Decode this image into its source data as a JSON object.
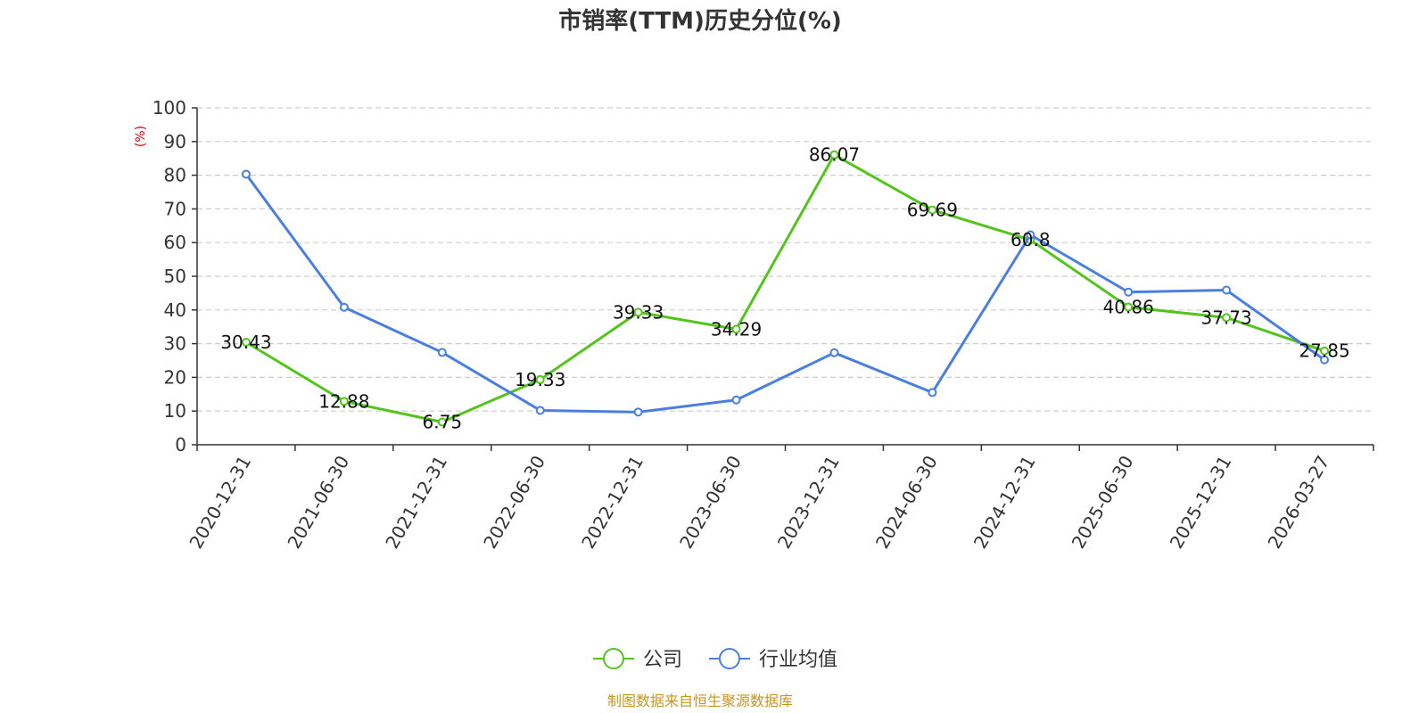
{
  "chart_data": {
    "type": "line",
    "title": "市销率(TTM)历史分位(%)",
    "ylabel": "(%)",
    "xlabel": "",
    "ylim": [
      0,
      100
    ],
    "yticks": [
      "0",
      "10",
      "20",
      "30",
      "40",
      "50",
      "60",
      "70",
      "80",
      "90",
      "100"
    ],
    "categories": [
      "2020-12-31",
      "2021-06-30",
      "2021-12-31",
      "2022-06-30",
      "2022-12-31",
      "2023-06-30",
      "2023-12-31",
      "2024-06-30",
      "2024-12-31",
      "2025-06-30",
      "2025-12-31",
      "2026-03-27"
    ],
    "grid": true,
    "legend_position": "bottom",
    "series": [
      {
        "name": "公司",
        "color": "#52c41a",
        "values": [
          30.43,
          12.88,
          6.75,
          19.33,
          39.33,
          34.29,
          86.07,
          69.69,
          60.8,
          40.86,
          37.73,
          27.85
        ],
        "labels": [
          "30.43",
          "12.88",
          "6.75",
          "19.33",
          "39.33",
          "34.29",
          "86.07",
          "69.69",
          "60.8",
          "40.86",
          "37.73",
          "27.85"
        ]
      },
      {
        "name": "行业均值",
        "color": "#4a7fe0",
        "values": [
          80.3,
          40.8,
          27.4,
          10.2,
          9.7,
          13.3,
          27.3,
          15.5,
          62.3,
          45.3,
          45.9,
          25.2
        ]
      }
    ],
    "source": "制图数据来自恒生聚源数据库",
    "source_color": "#c8961e",
    "unit_color": "#e00000"
  }
}
